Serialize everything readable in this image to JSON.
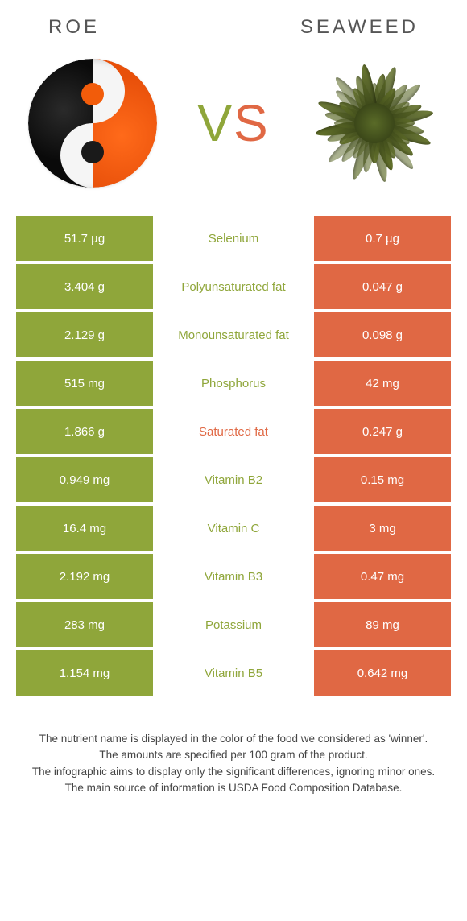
{
  "header": {
    "left_title": "Roe",
    "right_title": "Seaweed"
  },
  "vs": {
    "v": "V",
    "s": "S"
  },
  "colors": {
    "left_bg": "#8fa63a",
    "right_bg": "#e06844",
    "mid_left_label": "#8fa63a",
    "mid_right_label": "#e06844"
  },
  "nutrients": [
    {
      "left": "51.7 µg",
      "label": "Selenium",
      "right": "0.7 µg",
      "label_color": "#8fa63a"
    },
    {
      "left": "3.404 g",
      "label": "Polyunsaturated fat",
      "right": "0.047 g",
      "label_color": "#8fa63a"
    },
    {
      "left": "2.129 g",
      "label": "Monounsaturated fat",
      "right": "0.098 g",
      "label_color": "#8fa63a"
    },
    {
      "left": "515 mg",
      "label": "Phosphorus",
      "right": "42 mg",
      "label_color": "#8fa63a"
    },
    {
      "left": "1.866 g",
      "label": "Saturated fat",
      "right": "0.247 g",
      "label_color": "#e06844"
    },
    {
      "left": "0.949 mg",
      "label": "Vitamin B2",
      "right": "0.15 mg",
      "label_color": "#8fa63a"
    },
    {
      "left": "16.4 mg",
      "label": "Vitamin C",
      "right": "3 mg",
      "label_color": "#8fa63a"
    },
    {
      "left": "2.192 mg",
      "label": "Vitamin B3",
      "right": "0.47 mg",
      "label_color": "#8fa63a"
    },
    {
      "left": "283 mg",
      "label": "Potassium",
      "right": "89 mg",
      "label_color": "#8fa63a"
    },
    {
      "left": "1.154 mg",
      "label": "Vitamin B5",
      "right": "0.642 mg",
      "label_color": "#8fa63a"
    }
  ],
  "footnotes": [
    "The nutrient name is displayed in the color of the food we considered as 'winner'.",
    "The amounts are specified per 100 gram of the product.",
    "The infographic aims to display only the significant differences, ignoring minor ones.",
    "The main source of information is USDA Food Composition Database."
  ]
}
